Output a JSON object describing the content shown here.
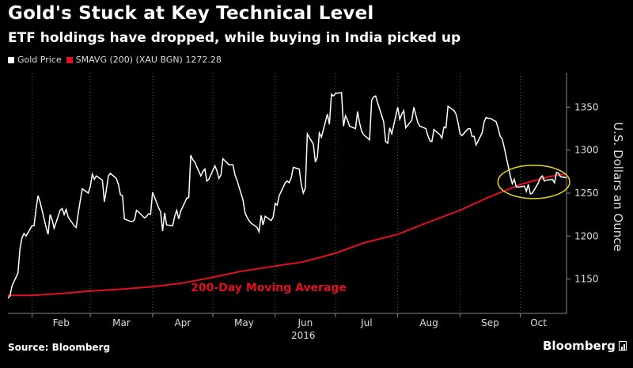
{
  "header": {
    "title": "Gold's Stuck at Key Technical Level",
    "subtitle": "ETF holdings have dropped, while buying in India picked up"
  },
  "legend": {
    "items": [
      {
        "label": "Gold Price",
        "color": "#ffffff"
      },
      {
        "label": "SMAVG (200) (XAU BGN) 1272.28",
        "color": "#e01020"
      }
    ]
  },
  "footer": {
    "source": "Source: Bloomberg",
    "brand": "Bloomberg"
  },
  "chart_data": {
    "type": "line",
    "title": "Gold's Stuck at Key Technical Level",
    "subtitle": "ETF holdings have dropped, while buying in India picked up",
    "ylabel": "U.S. Dollars an Ounce",
    "year_label": "2016",
    "x_ticks": [
      "Feb",
      "Mar",
      "Apr",
      "May",
      "Jun",
      "Jul",
      "Aug",
      "Sep",
      "Oct"
    ],
    "y_ticks": [
      1150,
      1200,
      1250,
      1300,
      1350
    ],
    "ylim": [
      1110,
      1390
    ],
    "xlim": [
      "2016-01-20",
      "2016-10-24"
    ],
    "grid": "vertical dotted at month starts",
    "annotation": "200-Day Moving Average",
    "highlight": "circle around late Sep–Oct where price meets moving average",
    "series": [
      {
        "name": "Gold Price",
        "color": "#ffffff",
        "points": [
          [
            "2016-01-20",
            1128
          ],
          [
            "2016-01-21",
            1130
          ],
          [
            "2016-01-22",
            1142
          ],
          [
            "2016-01-25",
            1157
          ],
          [
            "2016-01-26",
            1185
          ],
          [
            "2016-01-27",
            1198
          ],
          [
            "2016-01-28",
            1203
          ],
          [
            "2016-01-29",
            1200
          ],
          [
            "2016-02-01",
            1212
          ],
          [
            "2016-02-02",
            1212
          ],
          [
            "2016-02-03",
            1232
          ],
          [
            "2016-02-04",
            1247
          ],
          [
            "2016-02-05",
            1240
          ],
          [
            "2016-02-08",
            1210
          ],
          [
            "2016-02-09",
            1202
          ],
          [
            "2016-02-10",
            1225
          ],
          [
            "2016-02-11",
            1219
          ],
          [
            "2016-02-12",
            1209
          ],
          [
            "2016-02-15",
            1230
          ],
          [
            "2016-02-16",
            1232
          ],
          [
            "2016-02-17",
            1225
          ],
          [
            "2016-02-18",
            1231
          ],
          [
            "2016-02-19",
            1222
          ],
          [
            "2016-02-22",
            1212
          ],
          [
            "2016-02-23",
            1210
          ],
          [
            "2016-02-24",
            1227
          ],
          [
            "2016-02-25",
            1241
          ],
          [
            "2016-02-26",
            1255
          ],
          [
            "2016-02-29",
            1250
          ],
          [
            "2016-03-01",
            1258
          ],
          [
            "2016-03-02",
            1272
          ],
          [
            "2016-03-03",
            1266
          ],
          [
            "2016-03-04",
            1270
          ],
          [
            "2016-03-07",
            1265
          ],
          [
            "2016-03-08",
            1240
          ],
          [
            "2016-03-09",
            1254
          ],
          [
            "2016-03-10",
            1270
          ],
          [
            "2016-03-11",
            1273
          ],
          [
            "2016-03-14",
            1267
          ],
          [
            "2016-03-15",
            1260
          ],
          [
            "2016-03-16",
            1248
          ],
          [
            "2016-03-17",
            1247
          ],
          [
            "2016-03-18",
            1220
          ],
          [
            "2016-03-21",
            1217
          ],
          [
            "2016-03-22",
            1217
          ],
          [
            "2016-03-23",
            1219
          ],
          [
            "2016-03-24",
            1230
          ],
          [
            "2016-03-25",
            1228
          ],
          [
            "2016-03-28",
            1221
          ],
          [
            "2016-03-29",
            1223
          ],
          [
            "2016-03-30",
            1226
          ],
          [
            "2016-03-31",
            1225
          ],
          [
            "2016-04-01",
            1251
          ],
          [
            "2016-04-04",
            1233
          ],
          [
            "2016-04-05",
            1228
          ],
          [
            "2016-04-06",
            1206
          ],
          [
            "2016-04-07",
            1227
          ],
          [
            "2016-04-08",
            1213
          ],
          [
            "2016-04-11",
            1212
          ],
          [
            "2016-04-12",
            1223
          ],
          [
            "2016-04-13",
            1230
          ],
          [
            "2016-04-14",
            1220
          ],
          [
            "2016-04-15",
            1229
          ],
          [
            "2016-04-18",
            1244
          ],
          [
            "2016-04-19",
            1245
          ],
          [
            "2016-04-20",
            1294
          ],
          [
            "2016-04-21",
            1289
          ],
          [
            "2016-04-22",
            1286
          ],
          [
            "2016-04-25",
            1270
          ],
          [
            "2016-04-26",
            1275
          ],
          [
            "2016-04-27",
            1278
          ],
          [
            "2016-04-28",
            1264
          ],
          [
            "2016-04-29",
            1266
          ],
          [
            "2016-05-02",
            1282
          ],
          [
            "2016-05-03",
            1276
          ],
          [
            "2016-05-04",
            1267
          ],
          [
            "2016-05-05",
            1271
          ],
          [
            "2016-05-06",
            1290
          ],
          [
            "2016-05-09",
            1283
          ],
          [
            "2016-05-10",
            1283
          ],
          [
            "2016-05-11",
            1283
          ],
          [
            "2016-05-12",
            1271
          ],
          [
            "2016-05-13",
            1265
          ],
          [
            "2016-05-16",
            1242
          ],
          [
            "2016-05-17",
            1227
          ],
          [
            "2016-05-18",
            1222
          ],
          [
            "2016-05-19",
            1218
          ],
          [
            "2016-05-20",
            1215
          ],
          [
            "2016-05-23",
            1210
          ],
          [
            "2016-05-24",
            1205
          ],
          [
            "2016-05-25",
            1224
          ],
          [
            "2016-05-26",
            1213
          ],
          [
            "2016-05-27",
            1223
          ],
          [
            "2016-05-30",
            1218
          ],
          [
            "2016-05-31",
            1222
          ],
          [
            "2016-06-01",
            1238
          ],
          [
            "2016-06-02",
            1236
          ],
          [
            "2016-06-03",
            1247
          ],
          [
            "2016-06-06",
            1262
          ],
          [
            "2016-06-07",
            1264
          ],
          [
            "2016-06-08",
            1262
          ],
          [
            "2016-06-09",
            1268
          ],
          [
            "2016-06-10",
            1280
          ],
          [
            "2016-06-13",
            1278
          ],
          [
            "2016-06-14",
            1260
          ],
          [
            "2016-06-15",
            1250
          ],
          [
            "2016-06-16",
            1256
          ],
          [
            "2016-06-17",
            1319
          ],
          [
            "2016-06-20",
            1307
          ],
          [
            "2016-06-21",
            1286
          ],
          [
            "2016-06-22",
            1292
          ],
          [
            "2016-06-23",
            1320
          ],
          [
            "2016-06-24",
            1315
          ],
          [
            "2016-06-27",
            1342
          ],
          [
            "2016-06-28",
            1330
          ],
          [
            "2016-06-29",
            1365
          ],
          [
            "2016-06-30",
            1363
          ],
          [
            "2016-07-01",
            1366
          ],
          [
            "2016-07-04",
            1367
          ],
          [
            "2016-07-05",
            1328
          ],
          [
            "2016-07-06",
            1340
          ],
          [
            "2016-07-07",
            1335
          ],
          [
            "2016-07-08",
            1328
          ],
          [
            "2016-07-11",
            1325
          ],
          [
            "2016-07-12",
            1345
          ],
          [
            "2016-07-13",
            1332
          ],
          [
            "2016-07-14",
            1322
          ],
          [
            "2016-07-15",
            1318
          ],
          [
            "2016-07-18",
            1312
          ],
          [
            "2016-07-19",
            1358
          ],
          [
            "2016-07-20",
            1362
          ],
          [
            "2016-07-21",
            1363
          ],
          [
            "2016-07-22",
            1355
          ],
          [
            "2016-07-25",
            1333
          ],
          [
            "2016-07-26",
            1310
          ],
          [
            "2016-07-27",
            1308
          ],
          [
            "2016-07-28",
            1326
          ],
          [
            "2016-07-29",
            1319
          ],
          [
            "2016-08-01",
            1350
          ],
          [
            "2016-08-02",
            1336
          ],
          [
            "2016-08-03",
            1342
          ],
          [
            "2016-08-04",
            1346
          ],
          [
            "2016-08-05",
            1326
          ],
          [
            "2016-08-08",
            1335
          ],
          [
            "2016-08-09",
            1350
          ],
          [
            "2016-08-10",
            1341
          ],
          [
            "2016-08-11",
            1332
          ],
          [
            "2016-08-12",
            1328
          ],
          [
            "2016-08-15",
            1325
          ],
          [
            "2016-08-16",
            1317
          ],
          [
            "2016-08-17",
            1311
          ],
          [
            "2016-08-18",
            1310
          ],
          [
            "2016-08-19",
            1324
          ],
          [
            "2016-08-22",
            1318
          ],
          [
            "2016-08-23",
            1314
          ],
          [
            "2016-08-24",
            1327
          ],
          [
            "2016-08-25",
            1326
          ],
          [
            "2016-08-26",
            1351
          ],
          [
            "2016-08-29",
            1346
          ],
          [
            "2016-08-30",
            1342
          ],
          [
            "2016-08-31",
            1332
          ],
          [
            "2016-09-01",
            1319
          ],
          [
            "2016-09-02",
            1317
          ],
          [
            "2016-09-05",
            1325
          ],
          [
            "2016-09-06",
            1325
          ],
          [
            "2016-09-07",
            1316
          ],
          [
            "2016-09-08",
            1316
          ],
          [
            "2016-09-09",
            1306
          ],
          [
            "2016-09-12",
            1320
          ],
          [
            "2016-09-13",
            1333
          ],
          [
            "2016-09-14",
            1338
          ],
          [
            "2016-09-15",
            1337
          ],
          [
            "2016-09-16",
            1337
          ],
          [
            "2016-09-19",
            1333
          ],
          [
            "2016-09-20",
            1325
          ],
          [
            "2016-09-21",
            1316
          ],
          [
            "2016-09-22",
            1313
          ],
          [
            "2016-09-23",
            1303
          ],
          [
            "2016-09-26",
            1270
          ],
          [
            "2016-09-27",
            1261
          ],
          [
            "2016-09-28",
            1266
          ],
          [
            "2016-09-29",
            1257
          ],
          [
            "2016-09-30",
            1257
          ],
          [
            "2016-10-03",
            1258
          ],
          [
            "2016-10-04",
            1252
          ],
          [
            "2016-10-05",
            1260
          ],
          [
            "2016-10-06",
            1249
          ],
          [
            "2016-10-07",
            1250
          ],
          [
            "2016-10-10",
            1262
          ],
          [
            "2016-10-11",
            1268
          ],
          [
            "2016-10-12",
            1270
          ],
          [
            "2016-10-13",
            1264
          ],
          [
            "2016-10-14",
            1265
          ],
          [
            "2016-10-17",
            1266
          ],
          [
            "2016-10-18",
            1262
          ],
          [
            "2016-10-19",
            1274
          ],
          [
            "2016-10-20",
            1273
          ],
          [
            "2016-10-21",
            1269
          ],
          [
            "2016-10-24",
            1268
          ]
        ]
      },
      {
        "name": "SMAVG (200) (XAU BGN) 1272.28",
        "color": "#e01020",
        "points": [
          [
            "2016-01-20",
            1131
          ],
          [
            "2016-02-01",
            1131
          ],
          [
            "2016-02-15",
            1133
          ],
          [
            "2016-03-01",
            1136
          ],
          [
            "2016-03-15",
            1138
          ],
          [
            "2016-04-01",
            1141
          ],
          [
            "2016-04-15",
            1145
          ],
          [
            "2016-05-01",
            1152
          ],
          [
            "2016-05-15",
            1159
          ],
          [
            "2016-06-01",
            1165
          ],
          [
            "2016-06-15",
            1170
          ],
          [
            "2016-07-01",
            1180
          ],
          [
            "2016-07-15",
            1192
          ],
          [
            "2016-08-01",
            1202
          ],
          [
            "2016-08-15",
            1215
          ],
          [
            "2016-09-01",
            1230
          ],
          [
            "2016-09-15",
            1245
          ],
          [
            "2016-10-01",
            1260
          ],
          [
            "2016-10-15",
            1269
          ],
          [
            "2016-10-24",
            1272.28
          ]
        ]
      }
    ]
  }
}
